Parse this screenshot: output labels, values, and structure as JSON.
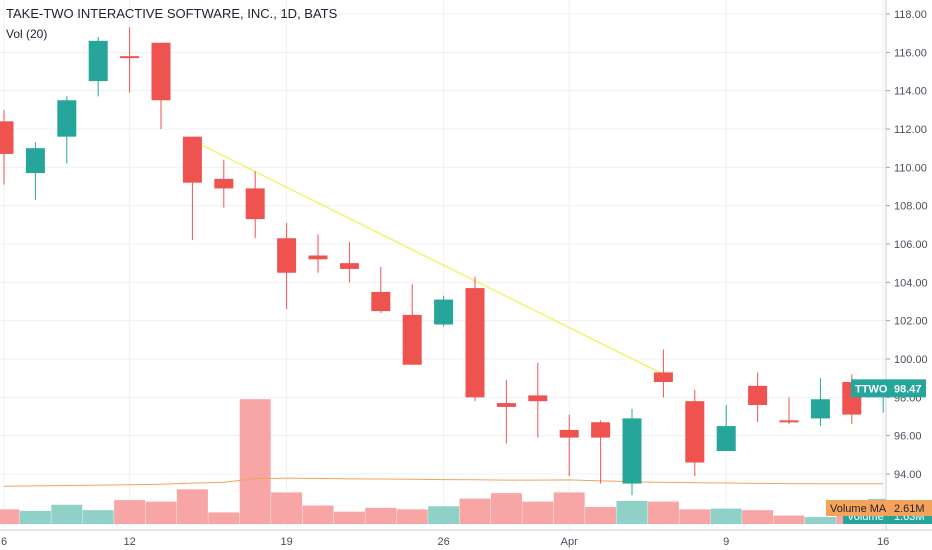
{
  "header": {
    "title": "TAKE-TWO INTERACTIVE SOFTWARE, INC., 1D, BATS",
    "indicator": "Vol (20)"
  },
  "colors": {
    "up": "#26a69a",
    "down": "#ef5350",
    "up_volume": "#8fd1c7",
    "down_volume": "#f7a5a5",
    "trendline": "#f3f36b",
    "volume_ma": "#f5a35b",
    "grid": "#eef0f3",
    "axis_text": "#4a4f5b"
  },
  "price_badge": {
    "symbol": "TTWO",
    "value": "98.47"
  },
  "volume_ma_badge": {
    "label": "Volume MA",
    "value": "2.61M"
  },
  "volume_badge": {
    "label": "Volume",
    "value": "1.63M"
  },
  "chart_data": {
    "type": "candlestick",
    "y_ticks": [
      "94.00",
      "96.00",
      "98.00",
      "100.00",
      "102.00",
      "104.00",
      "106.00",
      "108.00",
      "110.00",
      "112.00",
      "114.00",
      "116.00",
      "118.00"
    ],
    "ylim": [
      92.5,
      118.5
    ],
    "x_ticks": [
      {
        "label": "6",
        "index": 0
      },
      {
        "label": "12",
        "index": 4
      },
      {
        "label": "19",
        "index": 9
      },
      {
        "label": "26",
        "index": 14
      },
      {
        "label": "Apr",
        "index": 18
      },
      {
        "label": "9",
        "index": 23
      },
      {
        "label": "16",
        "index": 28
      }
    ],
    "candles": [
      {
        "o": 112.4,
        "h": 113.0,
        "l": 109.1,
        "c": 110.7,
        "v": 0.95
      },
      {
        "o": 109.7,
        "h": 111.3,
        "l": 108.3,
        "c": 111.0,
        "v": 0.85
      },
      {
        "o": 111.6,
        "h": 113.7,
        "l": 110.2,
        "c": 113.5,
        "v": 1.25
      },
      {
        "o": 114.5,
        "h": 116.8,
        "l": 113.7,
        "c": 116.6,
        "v": 0.9
      },
      {
        "o": 115.8,
        "h": 117.3,
        "l": 113.9,
        "c": 115.7,
        "v": 1.55
      },
      {
        "o": 116.5,
        "h": 116.5,
        "l": 112.0,
        "c": 113.5,
        "v": 1.45
      },
      {
        "o": 111.6,
        "h": 111.6,
        "l": 106.2,
        "c": 109.2,
        "v": 2.25
      },
      {
        "o": 109.4,
        "h": 110.4,
        "l": 107.9,
        "c": 108.9,
        "v": 0.75
      },
      {
        "o": 108.9,
        "h": 109.8,
        "l": 106.3,
        "c": 107.3,
        "v": 8.1
      },
      {
        "o": 106.3,
        "h": 107.1,
        "l": 102.6,
        "c": 104.5,
        "v": 2.05
      },
      {
        "o": 105.4,
        "h": 106.5,
        "l": 104.5,
        "c": 105.2,
        "v": 1.2
      },
      {
        "o": 105.0,
        "h": 106.1,
        "l": 104.0,
        "c": 104.7,
        "v": 0.8
      },
      {
        "o": 103.5,
        "h": 104.8,
        "l": 102.4,
        "c": 102.5,
        "v": 1.05
      },
      {
        "o": 102.3,
        "h": 103.9,
        "l": 99.8,
        "c": 99.7,
        "v": 0.95
      },
      {
        "o": 101.8,
        "h": 103.3,
        "l": 101.7,
        "c": 103.1,
        "v": 1.15
      },
      {
        "o": 103.7,
        "h": 104.3,
        "l": 97.8,
        "c": 98.0,
        "v": 1.65
      },
      {
        "o": 97.7,
        "h": 98.9,
        "l": 95.6,
        "c": 97.5,
        "v": 2.0
      },
      {
        "o": 98.1,
        "h": 99.8,
        "l": 95.9,
        "c": 97.8,
        "v": 1.45
      },
      {
        "o": 96.3,
        "h": 97.1,
        "l": 93.9,
        "c": 95.9,
        "v": 2.05
      },
      {
        "o": 96.7,
        "h": 96.8,
        "l": 93.5,
        "c": 95.9,
        "v": 1.1
      },
      {
        "o": 93.5,
        "h": 97.4,
        "l": 92.9,
        "c": 96.9,
        "v": 1.5
      },
      {
        "o": 99.3,
        "h": 100.5,
        "l": 98.0,
        "c": 98.8,
        "v": 1.45
      },
      {
        "o": 97.8,
        "h": 98.4,
        "l": 93.9,
        "c": 94.6,
        "v": 0.95
      },
      {
        "o": 95.2,
        "h": 97.6,
        "l": 95.2,
        "c": 96.5,
        "v": 1.0
      },
      {
        "o": 98.6,
        "h": 99.3,
        "l": 96.7,
        "c": 97.6,
        "v": 0.9
      },
      {
        "o": 96.8,
        "h": 98.0,
        "l": 96.6,
        "c": 96.7,
        "v": 0.55
      },
      {
        "o": 96.9,
        "h": 99.0,
        "l": 96.5,
        "c": 97.9,
        "v": 0.45
      },
      {
        "o": 98.8,
        "h": 99.2,
        "l": 96.6,
        "c": 97.1,
        "v": 0.9
      },
      {
        "o": 98.2,
        "h": 98.5,
        "l": 97.2,
        "c": 98.5,
        "v": 1.63
      }
    ],
    "volume_ma": [
      2.45,
      2.47,
      2.5,
      2.52,
      2.55,
      2.58,
      2.65,
      2.7,
      2.95,
      2.97,
      2.96,
      2.93,
      2.92,
      2.9,
      2.88,
      2.87,
      2.85,
      2.85,
      2.86,
      2.8,
      2.75,
      2.7,
      2.68,
      2.66,
      2.64,
      2.62,
      2.61,
      2.61,
      2.61
    ],
    "volume_max": 8.5,
    "trendline": {
      "from": {
        "index": 6,
        "price": 111.4
      },
      "to": {
        "index": 21,
        "price": 99.2
      }
    }
  }
}
